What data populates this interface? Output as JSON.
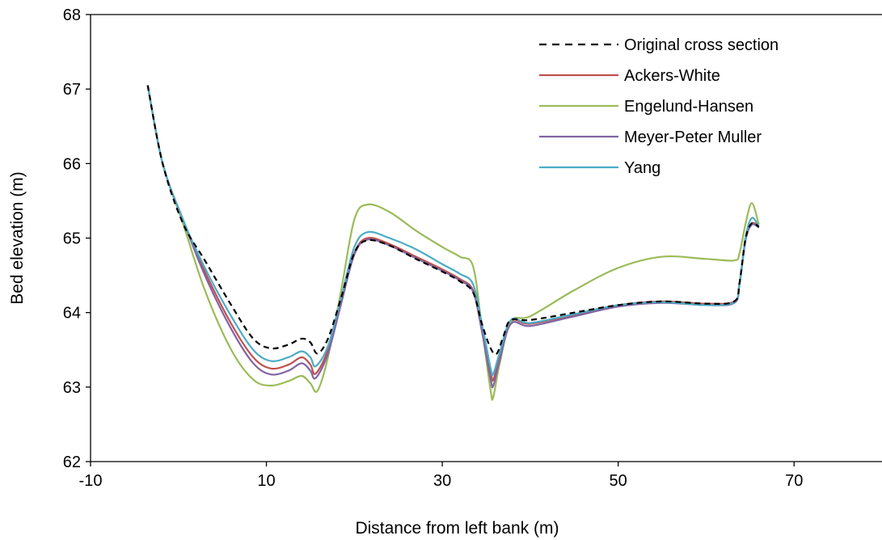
{
  "chart_data": {
    "type": "line",
    "title": "",
    "xlabel": "Distance from left bank (m)",
    "ylabel": "Bed elevation (m)",
    "xlim": [
      -10,
      80
    ],
    "ylim": [
      62,
      68
    ],
    "xticks": [
      -10,
      10,
      30,
      50,
      70
    ],
    "yticks": [
      62,
      63,
      64,
      65,
      66,
      67,
      68
    ],
    "grid": false,
    "legend_position": "top-right",
    "series": [
      {
        "name": "Original cross section",
        "color": "#000000",
        "dash": "dashed",
        "points": [
          [
            -3.5,
            67.05
          ],
          [
            -1.8,
            66.0
          ],
          [
            0.5,
            65.2
          ],
          [
            3,
            64.7
          ],
          [
            6,
            64.1
          ],
          [
            8.5,
            63.65
          ],
          [
            10.5,
            63.52
          ],
          [
            12.5,
            63.57
          ],
          [
            14,
            63.65
          ],
          [
            15,
            63.6
          ],
          [
            15.8,
            63.45
          ],
          [
            17,
            63.65
          ],
          [
            18.5,
            64.2
          ],
          [
            20,
            64.8
          ],
          [
            21.5,
            64.97
          ],
          [
            24,
            64.9
          ],
          [
            27,
            64.72
          ],
          [
            30,
            64.55
          ],
          [
            32,
            64.42
          ],
          [
            33.5,
            64.27
          ],
          [
            34.5,
            63.85
          ],
          [
            35.5,
            63.52
          ],
          [
            36.2,
            63.45
          ],
          [
            37,
            63.7
          ],
          [
            37.8,
            63.9
          ],
          [
            40,
            63.9
          ],
          [
            45,
            64.0
          ],
          [
            50,
            64.1
          ],
          [
            55,
            64.15
          ],
          [
            60,
            64.12
          ],
          [
            63.2,
            64.15
          ],
          [
            63.8,
            64.4
          ],
          [
            64.5,
            65.0
          ],
          [
            65.2,
            65.2
          ],
          [
            66,
            65.15
          ]
        ]
      },
      {
        "name": "Ackers-White",
        "color": "#c0504d",
        "dash": "solid",
        "points": [
          [
            -3.5,
            67.05
          ],
          [
            -1.8,
            66.0
          ],
          [
            0.5,
            65.25
          ],
          [
            3,
            64.55
          ],
          [
            6,
            63.85
          ],
          [
            8.5,
            63.4
          ],
          [
            10.5,
            63.25
          ],
          [
            12.5,
            63.3
          ],
          [
            14,
            63.4
          ],
          [
            15,
            63.3
          ],
          [
            15.6,
            63.18
          ],
          [
            17,
            63.5
          ],
          [
            18.5,
            64.15
          ],
          [
            20,
            64.8
          ],
          [
            21.5,
            65.0
          ],
          [
            24,
            64.92
          ],
          [
            27,
            64.75
          ],
          [
            30,
            64.58
          ],
          [
            32,
            64.45
          ],
          [
            33.5,
            64.3
          ],
          [
            34.5,
            63.8
          ],
          [
            35.5,
            63.2
          ],
          [
            35.8,
            63.1
          ],
          [
            36.5,
            63.4
          ],
          [
            37.8,
            63.88
          ],
          [
            40,
            63.85
          ],
          [
            45,
            63.97
          ],
          [
            50,
            64.1
          ],
          [
            55,
            64.15
          ],
          [
            60,
            64.12
          ],
          [
            63.2,
            64.15
          ],
          [
            63.8,
            64.4
          ],
          [
            64.5,
            65.0
          ],
          [
            65.2,
            65.2
          ],
          [
            66,
            65.15
          ]
        ]
      },
      {
        "name": "Engelund-Hansen",
        "color": "#9bbb59",
        "dash": "solid",
        "points": [
          [
            -3.5,
            67.05
          ],
          [
            -1.8,
            66.0
          ],
          [
            0.5,
            65.2
          ],
          [
            3,
            64.3
          ],
          [
            6,
            63.5
          ],
          [
            8.5,
            63.1
          ],
          [
            10.5,
            63.02
          ],
          [
            12.5,
            63.08
          ],
          [
            14,
            63.15
          ],
          [
            15,
            63.05
          ],
          [
            15.8,
            62.95
          ],
          [
            17,
            63.4
          ],
          [
            18.5,
            64.3
          ],
          [
            20,
            65.25
          ],
          [
            21.5,
            65.45
          ],
          [
            24,
            65.35
          ],
          [
            27,
            65.1
          ],
          [
            30,
            64.88
          ],
          [
            32,
            64.75
          ],
          [
            33.5,
            64.62
          ],
          [
            34.5,
            63.8
          ],
          [
            35.5,
            62.95
          ],
          [
            35.8,
            62.87
          ],
          [
            36.5,
            63.3
          ],
          [
            37.8,
            63.88
          ],
          [
            40,
            63.95
          ],
          [
            45,
            64.3
          ],
          [
            50,
            64.6
          ],
          [
            55,
            64.75
          ],
          [
            60,
            64.72
          ],
          [
            63.2,
            64.7
          ],
          [
            63.8,
            64.8
          ],
          [
            64.5,
            65.2
          ],
          [
            65.2,
            65.47
          ],
          [
            66,
            65.18
          ]
        ]
      },
      {
        "name": "Meyer-Peter Muller",
        "color": "#8064a2",
        "dash": "solid",
        "points": [
          [
            -3.5,
            67.05
          ],
          [
            -1.8,
            66.0
          ],
          [
            0.5,
            65.25
          ],
          [
            3,
            64.5
          ],
          [
            6,
            63.78
          ],
          [
            8.5,
            63.32
          ],
          [
            10.5,
            63.17
          ],
          [
            12.5,
            63.22
          ],
          [
            14,
            63.32
          ],
          [
            15,
            63.22
          ],
          [
            15.6,
            63.12
          ],
          [
            17,
            63.45
          ],
          [
            18.5,
            64.12
          ],
          [
            20,
            64.78
          ],
          [
            21.5,
            64.98
          ],
          [
            24,
            64.9
          ],
          [
            27,
            64.73
          ],
          [
            30,
            64.56
          ],
          [
            32,
            64.43
          ],
          [
            33.5,
            64.28
          ],
          [
            34.5,
            63.75
          ],
          [
            35.5,
            63.1
          ],
          [
            35.8,
            63.02
          ],
          [
            36.5,
            63.35
          ],
          [
            37.8,
            63.85
          ],
          [
            40,
            63.82
          ],
          [
            45,
            63.95
          ],
          [
            50,
            64.08
          ],
          [
            55,
            64.13
          ],
          [
            60,
            64.1
          ],
          [
            63.2,
            64.13
          ],
          [
            63.8,
            64.38
          ],
          [
            64.5,
            64.98
          ],
          [
            65.2,
            65.18
          ],
          [
            66,
            65.14
          ]
        ]
      },
      {
        "name": "Yang",
        "color": "#4bacc6",
        "dash": "solid",
        "points": [
          [
            -3.5,
            67.05
          ],
          [
            -1.8,
            66.0
          ],
          [
            0.5,
            65.25
          ],
          [
            3,
            64.6
          ],
          [
            6,
            63.95
          ],
          [
            8.5,
            63.5
          ],
          [
            10.5,
            63.35
          ],
          [
            12.5,
            63.4
          ],
          [
            14,
            63.48
          ],
          [
            15,
            63.4
          ],
          [
            15.6,
            63.28
          ],
          [
            17,
            63.55
          ],
          [
            18.5,
            64.2
          ],
          [
            20,
            64.88
          ],
          [
            21.5,
            65.08
          ],
          [
            24,
            65.0
          ],
          [
            27,
            64.85
          ],
          [
            30,
            64.65
          ],
          [
            32,
            64.52
          ],
          [
            33.5,
            64.38
          ],
          [
            34.5,
            63.85
          ],
          [
            35.5,
            63.25
          ],
          [
            35.8,
            63.18
          ],
          [
            36.5,
            63.45
          ],
          [
            37.8,
            63.9
          ],
          [
            40,
            63.86
          ],
          [
            45,
            63.98
          ],
          [
            50,
            64.1
          ],
          [
            55,
            64.14
          ],
          [
            60,
            64.1
          ],
          [
            63.2,
            64.14
          ],
          [
            63.8,
            64.4
          ],
          [
            64.5,
            65.02
          ],
          [
            65.2,
            65.27
          ],
          [
            66,
            65.15
          ]
        ]
      }
    ]
  }
}
